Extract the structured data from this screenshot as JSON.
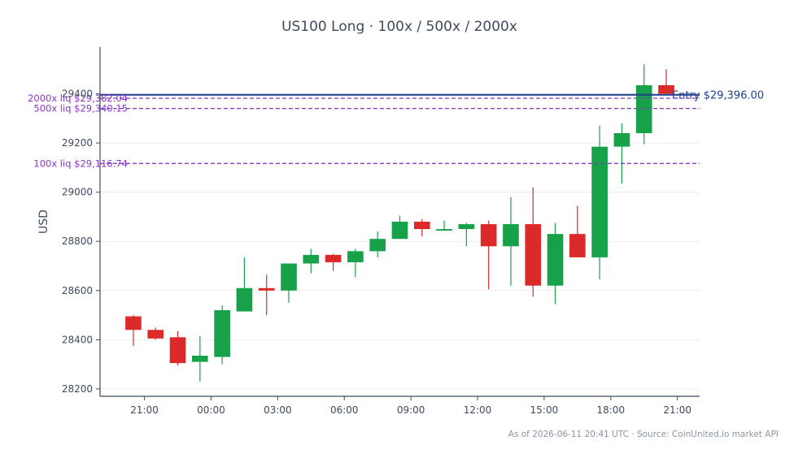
{
  "chart_data": {
    "type": "candlestick",
    "title": "US100 Long · 100x / 500x / 2000x",
    "ylabel": "USD",
    "xlabel": "",
    "ylim": [
      28170,
      29590
    ],
    "yticks": [
      28200,
      28400,
      28600,
      28800,
      29000,
      29200,
      29400
    ],
    "xlim": [
      -1.5,
      25.5
    ],
    "xticks": [
      {
        "at": 0.5,
        "label": "21:00"
      },
      {
        "at": 3.5,
        "label": "00:00"
      },
      {
        "at": 6.5,
        "label": "03:00"
      },
      {
        "at": 9.5,
        "label": "06:00"
      },
      {
        "at": 12.5,
        "label": "09:00"
      },
      {
        "at": 15.5,
        "label": "12:00"
      },
      {
        "at": 18.5,
        "label": "15:00"
      },
      {
        "at": 21.5,
        "label": "18:00"
      },
      {
        "at": 24.5,
        "label": "21:00"
      }
    ],
    "grid": true,
    "candles": [
      {
        "o": 28495,
        "h": 28500,
        "l": 28375,
        "c": 28440
      },
      {
        "o": 28440,
        "h": 28450,
        "l": 28400,
        "c": 28405
      },
      {
        "o": 28410,
        "h": 28435,
        "l": 28295,
        "c": 28305
      },
      {
        "o": 28310,
        "h": 28415,
        "l": 28230,
        "c": 28335
      },
      {
        "o": 28330,
        "h": 28540,
        "l": 28300,
        "c": 28520
      },
      {
        "o": 28515,
        "h": 28735,
        "l": 28515,
        "c": 28610
      },
      {
        "o": 28610,
        "h": 28665,
        "l": 28500,
        "c": 28600
      },
      {
        "o": 28600,
        "h": 28710,
        "l": 28550,
        "c": 28710
      },
      {
        "o": 28710,
        "h": 28770,
        "l": 28670,
        "c": 28745
      },
      {
        "o": 28745,
        "h": 28750,
        "l": 28680,
        "c": 28715
      },
      {
        "o": 28715,
        "h": 28770,
        "l": 28655,
        "c": 28760
      },
      {
        "o": 28760,
        "h": 28840,
        "l": 28735,
        "c": 28810
      },
      {
        "o": 28810,
        "h": 28905,
        "l": 28810,
        "c": 28880
      },
      {
        "o": 28880,
        "h": 28890,
        "l": 28820,
        "c": 28850
      },
      {
        "o": 28845,
        "h": 28885,
        "l": 28845,
        "c": 28850
      },
      {
        "o": 28850,
        "h": 28875,
        "l": 28780,
        "c": 28870
      },
      {
        "o": 28870,
        "h": 28885,
        "l": 28605,
        "c": 28780
      },
      {
        "o": 28780,
        "h": 28980,
        "l": 28620,
        "c": 28870
      },
      {
        "o": 28870,
        "h": 29020,
        "l": 28575,
        "c": 28620
      },
      {
        "o": 28620,
        "h": 28875,
        "l": 28545,
        "c": 28830
      },
      {
        "o": 28830,
        "h": 28945,
        "l": 28735,
        "c": 28735
      },
      {
        "o": 28735,
        "h": 29270,
        "l": 28645,
        "c": 29185
      },
      {
        "o": 29185,
        "h": 29280,
        "l": 29035,
        "c": 29240
      },
      {
        "o": 29240,
        "h": 29520,
        "l": 29195,
        "c": 29435
      },
      {
        "o": 29435,
        "h": 29500,
        "l": 29400,
        "c": 29400
      }
    ],
    "levels": [
      {
        "name": "Entry",
        "label": "Entry $29,396.00",
        "value": 29396.0,
        "style": "solid",
        "color": "#1f3f8f"
      },
      {
        "name": "2000x liq",
        "label": "2000x liq $29,382.04",
        "value": 29382.04,
        "style": "dashed",
        "color": "#8a35c9"
      },
      {
        "name": "500x liq",
        "label": "500x liq $29,340.15",
        "value": 29340.15,
        "style": "dashed",
        "color": "#8a35c9"
      },
      {
        "name": "100x liq",
        "label": "100x liq $29,116.74",
        "value": 29116.74,
        "style": "dashed",
        "color": "#8a35c9"
      }
    ],
    "colors": {
      "up": "#17a24a",
      "down": "#dc2a2a",
      "axis": "#3d4a5c",
      "grid": "#ececec"
    }
  },
  "footer": "As of 2026-06-11 20:41 UTC · Source: CoinUnited.io market API"
}
